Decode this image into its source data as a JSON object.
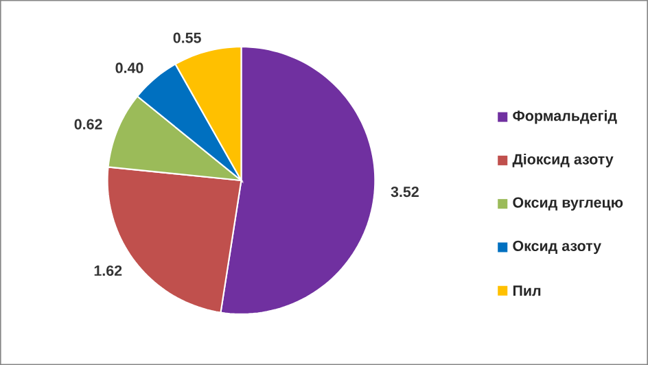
{
  "chart_data": {
    "type": "pie",
    "categories": [
      "Формальдегід",
      "Діоксид азоту",
      "Оксид вуглецю",
      "Оксид азоту",
      "Пил"
    ],
    "values": [
      3.52,
      1.62,
      0.62,
      0.4,
      0.55
    ],
    "value_labels": [
      "3.52",
      "1.62",
      "0.62",
      "0.40",
      "0.55"
    ],
    "colors": [
      "#7030a0",
      "#c0504d",
      "#9bbb59",
      "#0070c0",
      "#ffc000"
    ],
    "legend": "right"
  }
}
